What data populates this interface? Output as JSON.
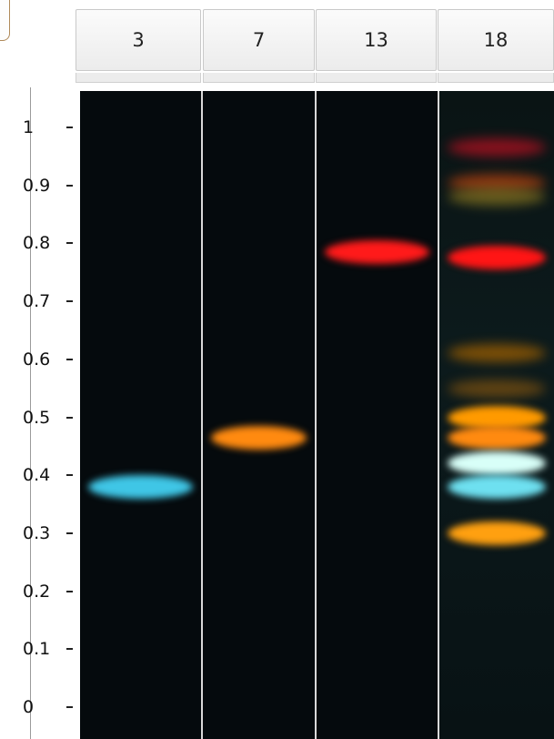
{
  "lanes": [
    {
      "label": "3",
      "bands": [
        {
          "rf": 0.38,
          "color": "#3fc6e6"
        }
      ]
    },
    {
      "label": "7",
      "bands": [
        {
          "rf": 0.465,
          "color": "#ff8a10"
        }
      ]
    },
    {
      "label": "13",
      "bands": [
        {
          "rf": 0.785,
          "color": "#ff1a1a"
        }
      ]
    },
    {
      "label": "18",
      "bands": [
        {
          "rf": 0.965,
          "color": "#b01020"
        },
        {
          "rf": 0.905,
          "color": "#b04010"
        },
        {
          "rf": 0.88,
          "color": "#807020"
        },
        {
          "rf": 0.775,
          "color": "#ff1515"
        },
        {
          "rf": 0.61,
          "color": "#a06000"
        },
        {
          "rf": 0.55,
          "color": "#7a5010"
        },
        {
          "rf": 0.5,
          "color": "#ff9a00"
        },
        {
          "rf": 0.465,
          "color": "#ff8a10"
        },
        {
          "rf": 0.42,
          "color": "#d8fff8"
        },
        {
          "rf": 0.38,
          "color": "#6ee0f0"
        },
        {
          "rf": 0.3,
          "color": "#ffa010"
        }
      ]
    }
  ],
  "y_axis": {
    "ticks": [
      "1",
      "0.9",
      "0.8",
      "0.7",
      "0.6",
      "0.5",
      "0.4",
      "0.3",
      "0.2",
      "0.1",
      "0"
    ]
  }
}
